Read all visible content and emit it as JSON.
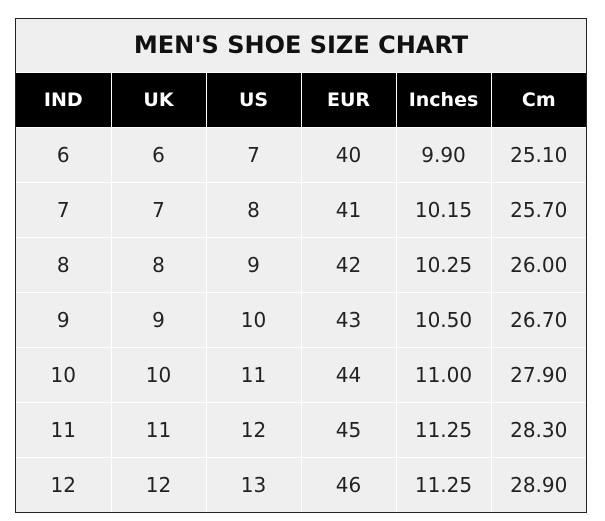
{
  "title": "MEN'S SHOE SIZE CHART",
  "columns": [
    "IND",
    "UK",
    "US",
    "EUR",
    "Inches",
    "Cm"
  ],
  "rows": [
    [
      "6",
      "6",
      "7",
      "40",
      "9.90",
      "25.10"
    ],
    [
      "7",
      "7",
      "8",
      "41",
      "10.15",
      "25.70"
    ],
    [
      "8",
      "8",
      "9",
      "42",
      "10.25",
      "26.00"
    ],
    [
      "9",
      "9",
      "10",
      "43",
      "10.50",
      "26.70"
    ],
    [
      "10",
      "10",
      "11",
      "44",
      "11.00",
      "27.90"
    ],
    [
      "11",
      "11",
      "12",
      "45",
      "11.25",
      "28.30"
    ],
    [
      "12",
      "12",
      "13",
      "46",
      "11.25",
      "28.90"
    ]
  ],
  "colors": {
    "header_bg": "#000000",
    "header_text": "#ffffff",
    "cell_bg": "#efefef",
    "cell_border": "#ffffff"
  }
}
